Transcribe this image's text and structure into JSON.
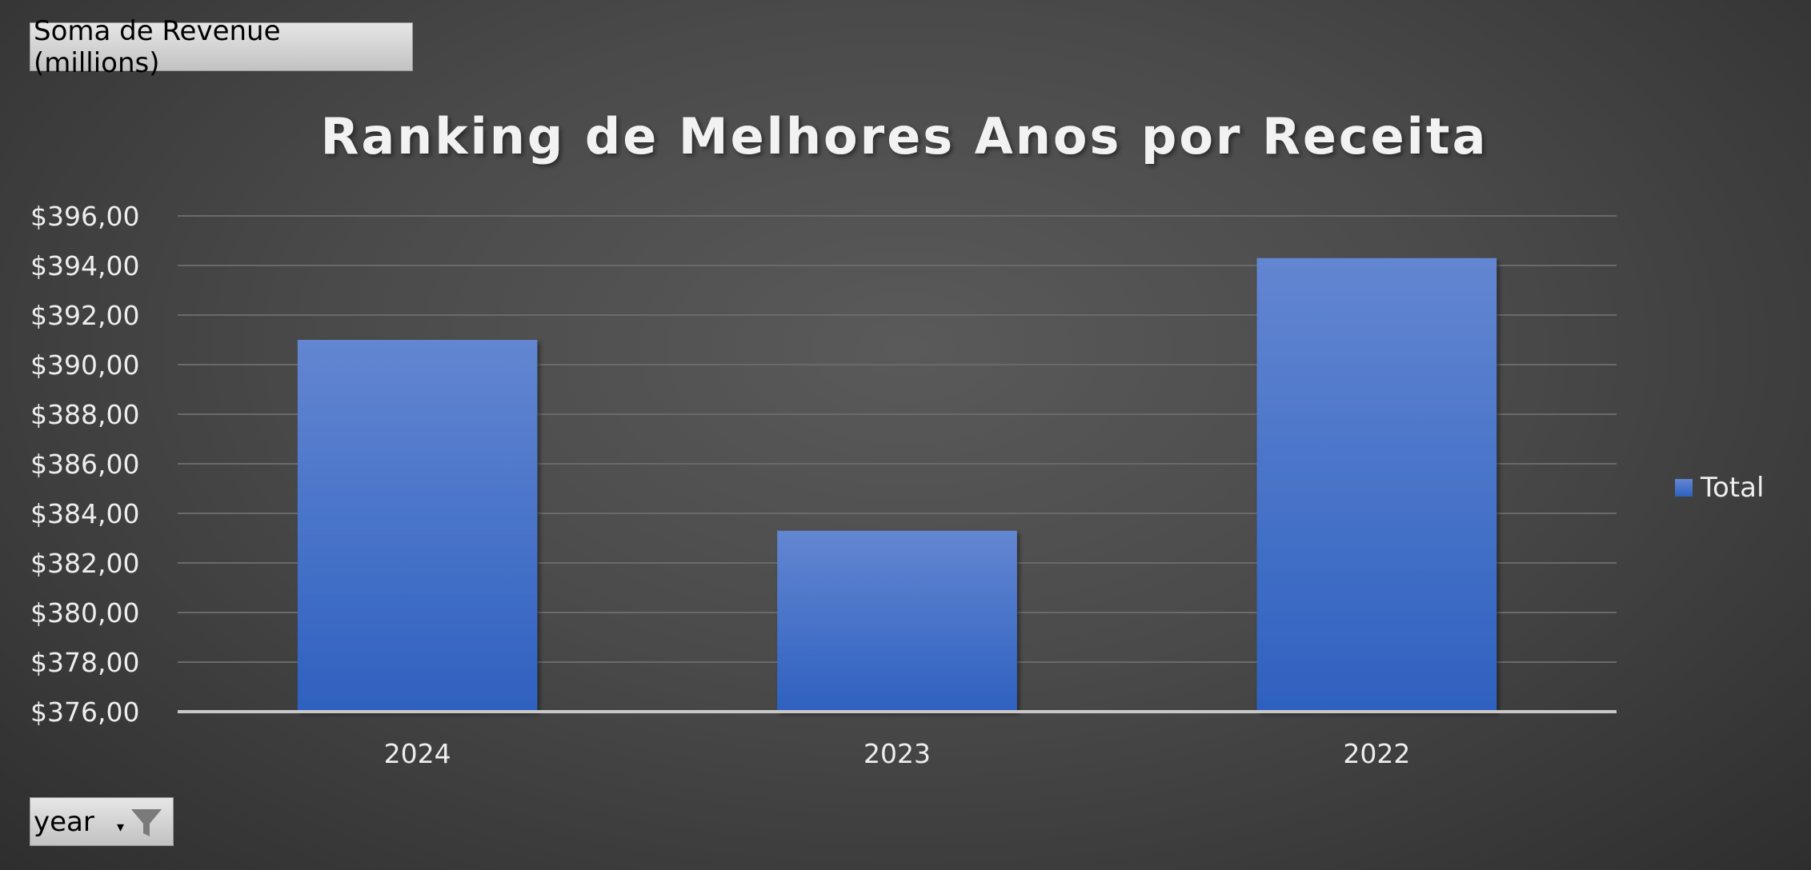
{
  "value_field_button": "Soma de Revenue (millions)",
  "axis_field_button": "year",
  "chart_data": {
    "type": "bar",
    "title": "Ranking de Melhores Anos por Receita",
    "categories": [
      "2024",
      "2023",
      "2022"
    ],
    "series": [
      {
        "name": "Total",
        "values": [
          391.0,
          383.3,
          394.3
        ],
        "color": "#4a74cc"
      }
    ],
    "ylim": [
      376,
      396
    ],
    "yticks": [
      376,
      378,
      380,
      382,
      384,
      386,
      388,
      390,
      392,
      394,
      396
    ],
    "ytick_labels": [
      "$376,00",
      "$378,00",
      "$380,00",
      "$382,00",
      "$384,00",
      "$386,00",
      "$388,00",
      "$390,00",
      "$392,00",
      "$394,00",
      "$396,00"
    ],
    "xlabel": "",
    "ylabel": "",
    "grid": true,
    "legend_position": "right"
  }
}
